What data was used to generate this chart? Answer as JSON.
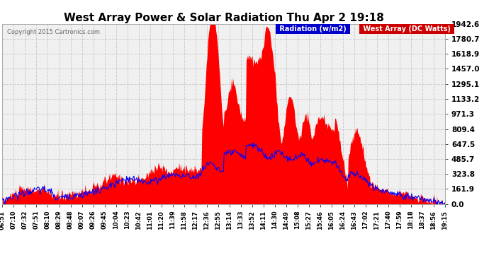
{
  "title": "West Array Power & Solar Radiation Thu Apr 2 19:18",
  "copyright": "Copyright 2015 Cartronics.com",
  "legend_radiation": "Radiation (w/m2)",
  "legend_west": "West Array (DC Watts)",
  "ymax": 1942.6,
  "yticks": [
    0.0,
    161.9,
    323.8,
    485.7,
    647.5,
    809.4,
    971.3,
    1133.2,
    1295.1,
    1457.0,
    1618.9,
    1780.7,
    1942.6
  ],
  "bg_color": "#ffffff",
  "plot_bg_color": "#f0f0f0",
  "radiation_color": "#0000ff",
  "west_color": "#ff0000",
  "title_color": "#000000",
  "label_color": "#000000",
  "grid_color": "#cccccc",
  "legend_rad_bg": "#0000cc",
  "legend_west_bg": "#cc0000",
  "x_labels": [
    "06:51",
    "07:10",
    "07:32",
    "07:51",
    "08:10",
    "08:29",
    "08:48",
    "09:07",
    "09:26",
    "09:45",
    "10:04",
    "10:23",
    "10:42",
    "11:01",
    "11:20",
    "11:39",
    "11:58",
    "12:17",
    "12:36",
    "12:55",
    "13:14",
    "13:33",
    "13:52",
    "14:11",
    "14:30",
    "14:49",
    "15:08",
    "15:27",
    "15:46",
    "16:05",
    "16:24",
    "16:43",
    "17:02",
    "17:21",
    "17:40",
    "17:59",
    "18:18",
    "18:37",
    "18:56",
    "19:15"
  ]
}
